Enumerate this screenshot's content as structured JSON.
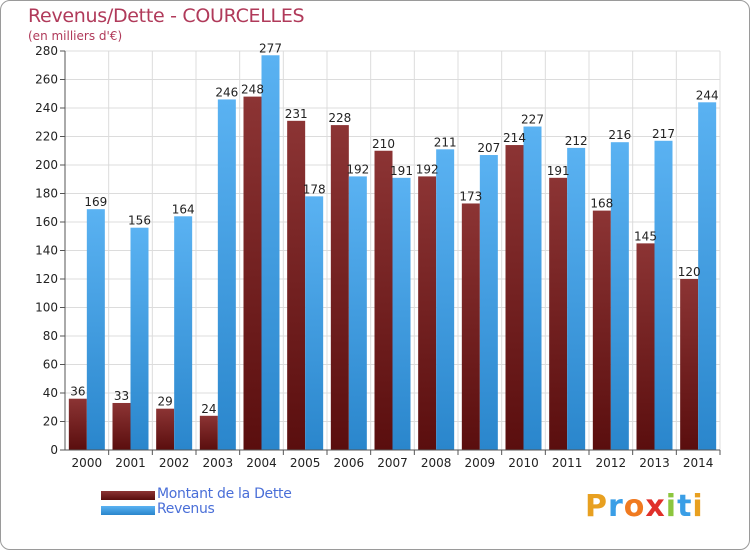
{
  "chart_data": {
    "type": "bar",
    "title": "Revenus/Dette - COURCELLES",
    "subtitle": "(en milliers d'€)",
    "categories": [
      "2000",
      "2001",
      "2002",
      "2003",
      "2004",
      "2005",
      "2006",
      "2007",
      "2008",
      "2009",
      "2010",
      "2011",
      "2012",
      "2013",
      "2014"
    ],
    "series": [
      {
        "name": "Montant de la Dette",
        "color": "#7a2020",
        "values": [
          36,
          33,
          29,
          24,
          248,
          231,
          228,
          210,
          192,
          173,
          214,
          191,
          168,
          145,
          120
        ]
      },
      {
        "name": "Revenus",
        "color": "#3a9ee6",
        "values": [
          169,
          156,
          164,
          246,
          277,
          178,
          192,
          191,
          211,
          207,
          227,
          212,
          216,
          217,
          244
        ]
      }
    ],
    "ylim": [
      0,
      280
    ],
    "yticks": [
      0,
      20,
      40,
      60,
      80,
      100,
      120,
      140,
      160,
      180,
      200,
      220,
      240,
      260,
      280
    ],
    "grid": true,
    "legend": "bottom-left"
  },
  "logo": {
    "text": "Proxiti",
    "letters": [
      {
        "ch": "P",
        "color": "#e8a020"
      },
      {
        "ch": "r",
        "color": "#3a9ee6"
      },
      {
        "ch": "o",
        "color": "#f07a20"
      },
      {
        "ch": "x",
        "color": "#e0302a"
      },
      {
        "ch": "i",
        "color": "#8cc63e"
      },
      {
        "ch": "t",
        "color": "#3a9ee6"
      },
      {
        "ch": "i",
        "color": "#e8a020"
      }
    ]
  }
}
